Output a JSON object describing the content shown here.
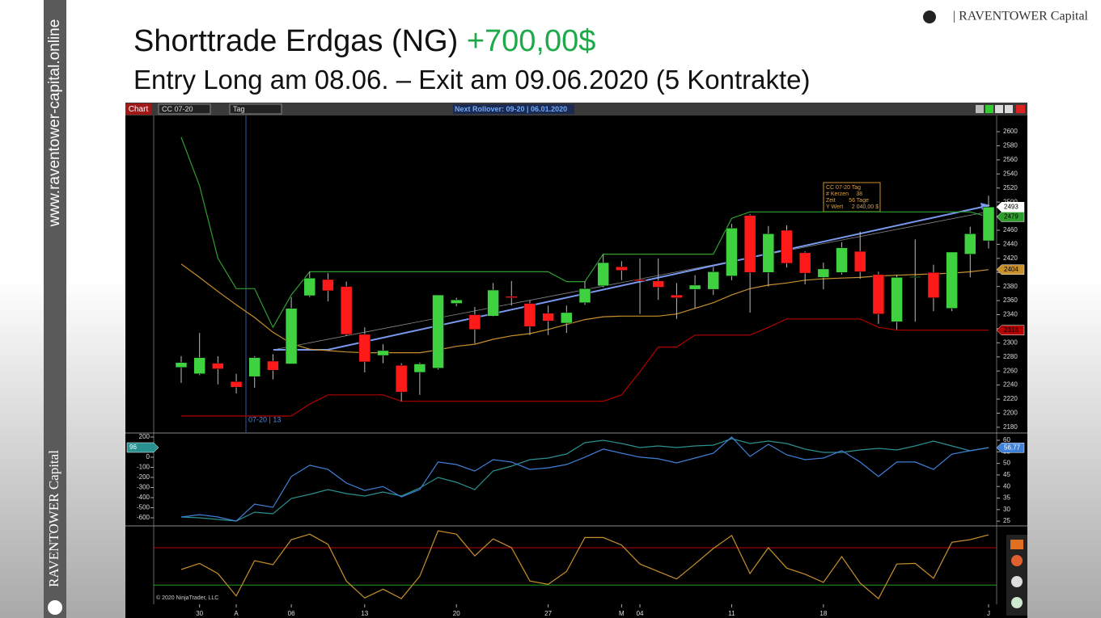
{
  "slide": {
    "title": "Shorttrade Erdgas (NG)",
    "profit": "+700,00$",
    "subtitle": "Entry Long am 08.06. – Exit am 09.06.2020 (5 Kontrakte)",
    "logo": "| RAVENTOWER Capital",
    "side_url": "www.raventower-capital.online",
    "side_brand": "RAVENTOWER Capital"
  },
  "toolbar": {
    "button": "Chart",
    "instrument": "CC 07-20",
    "period": "Tag",
    "rollover": "Next Rollover: 09-20 | 06.01.2020"
  },
  "footer": "© 2020 NinjaTrader, LLC",
  "chart_data": [
    {
      "type": "candlestick",
      "categories": [
        null,
        "30",
        null,
        "A",
        null,
        null,
        "06",
        null,
        null,
        null,
        "13",
        null,
        null,
        null,
        null,
        "20",
        null,
        null,
        null,
        null,
        "27",
        null,
        null,
        null,
        "M",
        "04",
        null,
        null,
        null,
        null,
        "11",
        null,
        null,
        null,
        null,
        "18",
        null,
        null,
        null,
        null,
        null,
        null,
        null,
        null,
        "J"
      ],
      "open": [
        2265,
        2256,
        2271,
        2245,
        2252,
        2274,
        2270,
        2367,
        2390,
        2380,
        2312,
        2282,
        2268,
        2258,
        2264,
        2356,
        2340,
        2338,
        2366,
        2356,
        2342,
        2328,
        2357,
        2381,
        2408,
        2390,
        2388,
        2368,
        2376,
        2376,
        2395,
        2481,
        2400,
        2460,
        2428,
        2393,
        2400,
        2430,
        2397,
        2330,
        2393,
        2400,
        2349,
        2426,
        2445
      ],
      "high": [
        2281,
        2314,
        2281,
        2256,
        2281,
        2284,
        2365,
        2401,
        2399,
        2387,
        2322,
        2298,
        2271,
        2272,
        2368,
        2364,
        2351,
        2385,
        2388,
        2360,
        2353,
        2353,
        2387,
        2426,
        2416,
        2420,
        2420,
        2385,
        2396,
        2408,
        2469,
        2483,
        2466,
        2467,
        2430,
        2414,
        2443,
        2458,
        2401,
        2397,
        2447,
        2411,
        2429,
        2465,
        2509
      ],
      "low": [
        2243,
        2254,
        2241,
        2228,
        2236,
        2248,
        2270,
        2365,
        2359,
        2310,
        2258,
        2271,
        2217,
        2226,
        2262,
        2352,
        2299,
        2337,
        2353,
        2311,
        2311,
        2314,
        2354,
        2379,
        2389,
        2341,
        2361,
        2334,
        2349,
        2368,
        2389,
        2343,
        2380,
        2407,
        2383,
        2376,
        2397,
        2391,
        2327,
        2319,
        2330,
        2345,
        2345,
        2393,
        2434
      ],
      "close": [
        2272,
        2279,
        2263,
        2237,
        2279,
        2261,
        2349,
        2392,
        2374,
        2312,
        2273,
        2289,
        2230,
        2270,
        2368,
        2361,
        2319,
        2375,
        2364,
        2323,
        2331,
        2343,
        2377,
        2414,
        2403,
        2388,
        2379,
        2364,
        2382,
        2401,
        2463,
        2400,
        2455,
        2413,
        2399,
        2405,
        2435,
        2401,
        2341,
        2393,
        2394,
        2364,
        2429,
        2455,
        2493
      ],
      "up_color": "#3fd13f",
      "down_color": "#ff1a1a",
      "overlays": [
        {
          "color": "#2f9e2f",
          "values": [
            2592,
            2523,
            2420,
            2377,
            2377,
            2322,
            2368,
            2401,
            2401,
            2401,
            2401,
            2401,
            2401,
            2401,
            2401,
            2401,
            2401,
            2401,
            2401,
            2401,
            2401,
            2387,
            2387,
            2426,
            2426,
            2426,
            2426,
            2426,
            2426,
            2426,
            2477,
            2486,
            2486,
            2486,
            2486,
            2486,
            2486,
            2486,
            2486,
            2486,
            2486,
            2486,
            2486,
            2486,
            2479
          ]
        },
        {
          "color": "#c8902c",
          "values": [
            2412,
            2393,
            2373,
            2354,
            2336,
            2315,
            2299,
            2291,
            2289,
            2287,
            2286,
            2286,
            2286,
            2286,
            2290,
            2295,
            2298,
            2305,
            2310,
            2313,
            2319,
            2326,
            2333,
            2337,
            2338,
            2338,
            2338,
            2341,
            2349,
            2357,
            2368,
            2377,
            2382,
            2385,
            2389,
            2391,
            2392,
            2393,
            2395,
            2396,
            2397,
            2398,
            2399,
            2401,
            2404
          ]
        },
        {
          "color": "#b40000",
          "values": [
            2196,
            2196,
            2196,
            2196,
            2196,
            2196,
            2196,
            2213,
            2226,
            2226,
            2226,
            2226,
            2217,
            2217,
            2217,
            2217,
            2217,
            2217,
            2217,
            2217,
            2217,
            2217,
            2217,
            2217,
            2226,
            2259,
            2294,
            2294,
            2311,
            2311,
            2311,
            2311,
            2322,
            2334,
            2334,
            2334,
            2334,
            2334,
            2322,
            2318,
            2318,
            2318,
            2318,
            2318,
            2318
          ]
        }
      ],
      "ylim": [
        2173,
        2623
      ],
      "yticks": [
        2180,
        2200,
        2220,
        2240,
        2260,
        2280,
        2300,
        2320,
        2340,
        2360,
        2380,
        2400,
        2420,
        2440,
        2460,
        2480,
        2500,
        2520,
        2540,
        2560,
        2580,
        2600
      ],
      "flags": true,
      "marker_label": "07-20 | 13",
      "tooltip": {
        "title": "CC 07-20 Tag",
        "rows": [
          [
            "# Kerzen",
            "38"
          ],
          [
            "Zeit",
            "56 Tage"
          ],
          [
            "Y Wert",
            "2 040,00 $"
          ]
        ]
      }
    },
    {
      "type": "line",
      "ylim": [
        -672,
        232
      ],
      "yticks": [
        200,
        0,
        -100,
        -200,
        -300,
        -400,
        -500,
        -600
      ],
      "y2lim": [
        23.3,
        62.8
      ],
      "y2ticks": [
        60,
        55,
        50,
        45,
        40,
        35,
        30,
        25
      ],
      "flags": true,
      "series": [
        {
          "color": "#2a9090",
          "values": [
            -592,
            -600,
            -616,
            -632,
            -544,
            -560,
            -408,
            -368,
            -320,
            -360,
            -384,
            -344,
            -384,
            -304,
            -200,
            -248,
            -320,
            -136,
            -88,
            -24,
            -8,
            32,
            144,
            168,
            136,
            96,
            112,
            96,
            112,
            120,
            184,
            136,
            160,
            136,
            80,
            48,
            48,
            72,
            88,
            72,
            112,
            160,
            112,
            64,
            96
          ]
        },
        {
          "color": "#3f80d8",
          "axis": "y2",
          "values": [
            26.8,
            27.8,
            26.8,
            25,
            32.4,
            31,
            44.3,
            49.2,
            47.4,
            41.5,
            38.3,
            40,
            35.5,
            38.7,
            50.6,
            49.5,
            46.7,
            51.6,
            50.6,
            47.4,
            48.1,
            49.5,
            52.7,
            56.2,
            54.4,
            52.7,
            52,
            50.2,
            52.3,
            54.4,
            61.4,
            53,
            58.3,
            53.7,
            51.6,
            52.3,
            55.5,
            50.6,
            44.3,
            50.6,
            50.6,
            47.4,
            54,
            55.5,
            56.77
          ],
          "value_labels": [
            null,
            null,
            null,
            null,
            null,
            null,
            null,
            null,
            null,
            null,
            null,
            null,
            null,
            null,
            null,
            null,
            null,
            null,
            null,
            null,
            null,
            null,
            null,
            null,
            null,
            null,
            null,
            null,
            null,
            null,
            null,
            null,
            null,
            null,
            null,
            null,
            null,
            null,
            null,
            null,
            null,
            null,
            null,
            null,
            "56,77"
          ]
        }
      ]
    },
    {
      "type": "line",
      "ylim": [
        -8.3,
        106
      ],
      "flags": false,
      "levels": [
        {
          "value": 75,
          "color": "#c00000"
        },
        {
          "value": 20,
          "color": "#1e9e1e"
        }
      ],
      "series": [
        {
          "color": "#c8902c",
          "values": [
            43,
            52,
            37,
            4,
            56,
            50,
            87,
            95,
            80,
            26,
            1,
            14,
            0,
            33,
            100,
            95,
            63,
            88,
            75,
            26,
            21,
            40,
            90,
            90,
            79,
            51,
            40,
            29,
            51,
            74,
            93,
            37,
            75,
            45,
            36,
            24,
            62,
            23,
            0,
            51,
            52,
            30,
            83,
            87,
            94
          ]
        }
      ]
    }
  ]
}
